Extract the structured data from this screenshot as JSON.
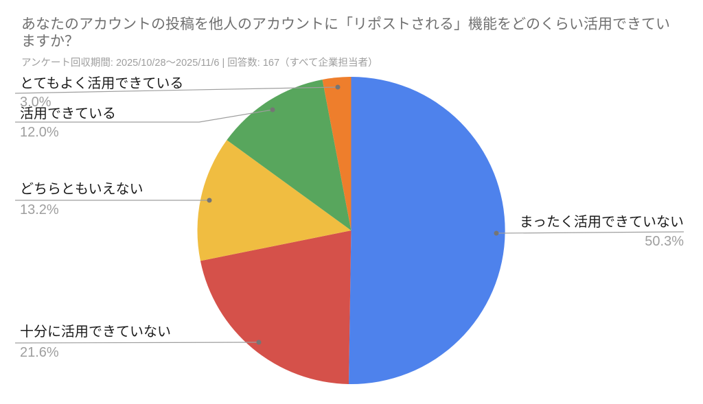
{
  "chart_data": {
    "type": "pie",
    "title": "あなたのアカウントの投稿を他人のアカウントに「リポストされる」機能をどのくらい活用できていますか？",
    "subtitle": "アンケート回収期間: 2025/10/28～2025/11/6 | 回答数: 167（すべて企業担当者）",
    "response_count": 167,
    "survey_period": "2025/10/28～2025/11/6",
    "direction": "clockwise",
    "start_angle_deg": 0,
    "legend_position": "outside-callout-labels-with-leader-lines",
    "grid": false,
    "slices": [
      {
        "label": "まったく活用できていない",
        "value_pct": 50.3,
        "pct_text": "50.3%",
        "color": "#4E82EC"
      },
      {
        "label": "十分に活用できていない",
        "value_pct": 21.6,
        "pct_text": "21.6%",
        "color": "#D5514A"
      },
      {
        "label": "どちらともいえない",
        "value_pct": 13.2,
        "pct_text": "13.2%",
        "color": "#F0BD41"
      },
      {
        "label": "活用できている",
        "value_pct": 12.0,
        "pct_text": "12.0%",
        "color": "#58A65D"
      },
      {
        "label": "とてもよく活用できている",
        "value_pct": 3.0,
        "pct_text": "3.0%",
        "color": "#EE7E2C"
      }
    ],
    "colors": {
      "background": "#FFFFFF",
      "title_text": "#707070",
      "subtitle_text": "#9E9E9E",
      "label_text": "#1A1A1A",
      "percent_text": "#9E9E9E",
      "leader_line": "#9E9E9E",
      "leader_dot": "#757575"
    }
  }
}
